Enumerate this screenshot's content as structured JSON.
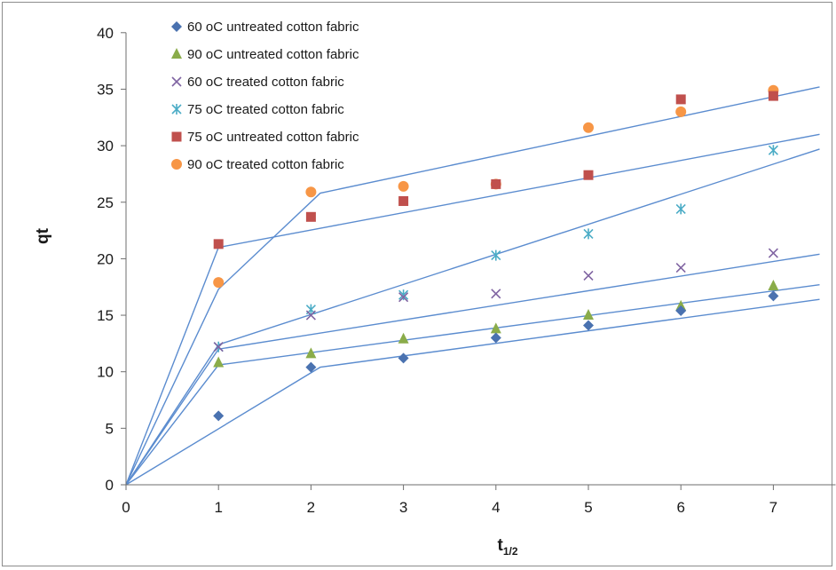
{
  "chart_data": {
    "type": "scatter",
    "title": "",
    "xlabel": "t",
    "xlabel_subscript": "1/2",
    "ylabel": "qt",
    "xlim": [
      0,
      7.5
    ],
    "ylim": [
      0,
      40
    ],
    "xticks": [
      "0",
      "1",
      "2",
      "3",
      "4",
      "5",
      "6",
      "7"
    ],
    "yticks": [
      "0",
      "5",
      "10",
      "15",
      "20",
      "25",
      "30",
      "35",
      "40"
    ],
    "grid": false,
    "legend_position": "top-left",
    "series": [
      {
        "name": "60 oC untreated cotton fabric",
        "marker": "diamond",
        "color": "#4a72b0",
        "points": [
          [
            1,
            6.1
          ],
          [
            2,
            10.4
          ],
          [
            3,
            11.2
          ],
          [
            4,
            13.0
          ],
          [
            5,
            14.1
          ],
          [
            6,
            15.4
          ],
          [
            7,
            16.7
          ]
        ]
      },
      {
        "name": "90 oC untreated cotton fabric",
        "marker": "triangle",
        "color": "#8aac4a",
        "points": [
          [
            1,
            10.8
          ],
          [
            2,
            11.6
          ],
          [
            3,
            12.9
          ],
          [
            4,
            13.8
          ],
          [
            5,
            15.0
          ],
          [
            6,
            15.8
          ],
          [
            7,
            17.6
          ]
        ]
      },
      {
        "name": "60 oC treated cotton fabric",
        "marker": "x",
        "color": "#8064a2",
        "points": [
          [
            1,
            12.2
          ],
          [
            2,
            15.0
          ],
          [
            3,
            16.6
          ],
          [
            4,
            16.9
          ],
          [
            5,
            18.5
          ],
          [
            6,
            19.2
          ],
          [
            7,
            20.5
          ]
        ]
      },
      {
        "name": "75 oC treated cotton fabric",
        "marker": "star",
        "color": "#4bacc6",
        "points": [
          [
            1,
            12.2
          ],
          [
            2,
            15.5
          ],
          [
            3,
            16.8
          ],
          [
            4,
            20.3
          ],
          [
            5,
            22.2
          ],
          [
            6,
            24.4
          ],
          [
            7,
            29.6
          ]
        ]
      },
      {
        "name": "75 oC untreated cotton fabric",
        "marker": "square",
        "color": "#c0504d",
        "points": [
          [
            1,
            21.3
          ],
          [
            2,
            23.7
          ],
          [
            3,
            25.1
          ],
          [
            4,
            26.6
          ],
          [
            5,
            27.4
          ],
          [
            6,
            34.1
          ],
          [
            7,
            34.4
          ]
        ]
      },
      {
        "name": "90 oC treated cotton fabric",
        "marker": "circle",
        "color": "#f79646",
        "points": [
          [
            1,
            17.9
          ],
          [
            2,
            25.9
          ],
          [
            3,
            26.4
          ],
          [
            4,
            26.6
          ],
          [
            5,
            31.6
          ],
          [
            6,
            33.0
          ],
          [
            7,
            34.9
          ]
        ]
      }
    ],
    "fit_lines": {
      "color": "#5b8ccf",
      "polylines": [
        [
          [
            0,
            0
          ],
          [
            2.1,
            10.4
          ],
          [
            7.5,
            16.4
          ]
        ],
        [
          [
            0,
            0
          ],
          [
            1.0,
            10.6
          ],
          [
            7.5,
            17.7
          ]
        ],
        [
          [
            0,
            0
          ],
          [
            1.0,
            12.0
          ],
          [
            7.5,
            20.4
          ]
        ],
        [
          [
            0,
            0
          ],
          [
            1.0,
            12.4
          ],
          [
            7.5,
            29.7
          ]
        ],
        [
          [
            0,
            0
          ],
          [
            1.0,
            21.0
          ],
          [
            7.5,
            31.0
          ]
        ],
        [
          [
            0,
            0
          ],
          [
            1.0,
            17.3
          ],
          [
            2.1,
            25.8
          ],
          [
            7.5,
            35.2
          ]
        ]
      ]
    }
  }
}
